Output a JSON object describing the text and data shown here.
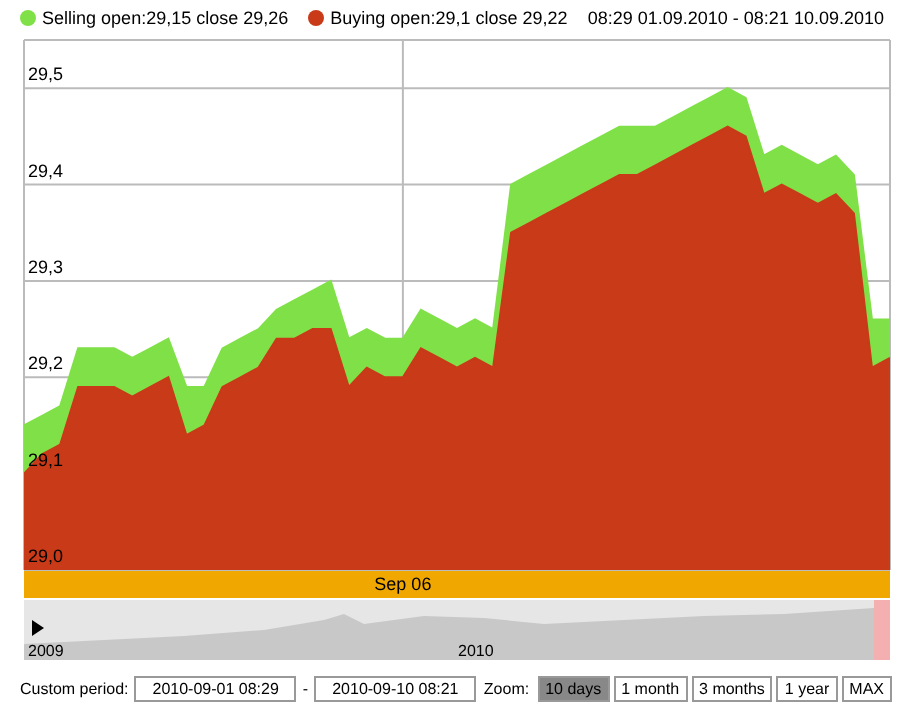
{
  "chart_data": {
    "type": "area",
    "categories": [
      null,
      null,
      null,
      null,
      null,
      null,
      null,
      null,
      null,
      null,
      null,
      null,
      null,
      null,
      null,
      null,
      null,
      null,
      null,
      null,
      null,
      "Sep 06",
      null,
      null,
      null,
      null,
      null,
      null,
      null,
      null,
      null,
      null,
      null,
      null,
      null,
      null,
      null,
      null,
      null,
      null,
      null,
      null,
      null,
      null,
      null,
      null,
      null,
      null,
      null
    ],
    "series": [
      {
        "name": "Selling",
        "color": "#80e048",
        "values": [
          29.15,
          29.16,
          29.17,
          29.23,
          29.23,
          29.23,
          29.22,
          29.23,
          29.24,
          29.19,
          29.19,
          29.23,
          29.24,
          29.25,
          29.27,
          29.28,
          29.29,
          29.3,
          29.24,
          29.25,
          29.24,
          29.24,
          29.27,
          29.26,
          29.25,
          29.26,
          29.25,
          29.4,
          29.41,
          29.42,
          29.43,
          29.44,
          29.45,
          29.46,
          29.46,
          29.46,
          29.47,
          29.48,
          29.49,
          29.5,
          29.49,
          29.43,
          29.44,
          29.43,
          29.42,
          29.43,
          29.41,
          29.26,
          29.26
        ]
      },
      {
        "name": "Buying",
        "color": "#c83a18",
        "values": [
          29.1,
          29.12,
          29.13,
          29.19,
          29.19,
          29.19,
          29.18,
          29.19,
          29.2,
          29.14,
          29.15,
          29.19,
          29.2,
          29.21,
          29.24,
          29.24,
          29.25,
          29.25,
          29.19,
          29.21,
          29.2,
          29.2,
          29.23,
          29.22,
          29.21,
          29.22,
          29.21,
          29.35,
          29.36,
          29.37,
          29.38,
          29.39,
          29.4,
          29.41,
          29.41,
          29.42,
          29.43,
          29.44,
          29.45,
          29.46,
          29.45,
          29.39,
          29.4,
          29.39,
          29.38,
          29.39,
          29.37,
          29.21,
          29.22
        ]
      }
    ],
    "ylim": [
      29.0,
      29.55
    ],
    "yticks": [
      {
        "value": 29.0,
        "label": "29,0"
      },
      {
        "value": 29.1,
        "label": "29,1"
      },
      {
        "value": 29.2,
        "label": "29,2"
      },
      {
        "value": 29.3,
        "label": "29,3"
      },
      {
        "value": 29.4,
        "label": "29,4"
      },
      {
        "value": 29.5,
        "label": "29,5"
      }
    ],
    "grid": true,
    "legend": "top left",
    "annotations": [
      "open:29,15 close 29,26",
      "open:29,1 close 29,22",
      "08:29 01.09.2010 - 08:21 10.09.2010",
      "2009",
      "2010",
      "Custom period:",
      "2010-09-01 08:29",
      "-",
      "2010-09-10 08:21",
      "Zoom:",
      "10 days",
      "1 month",
      "3 months",
      "1 year",
      "MAX"
    ]
  }
}
